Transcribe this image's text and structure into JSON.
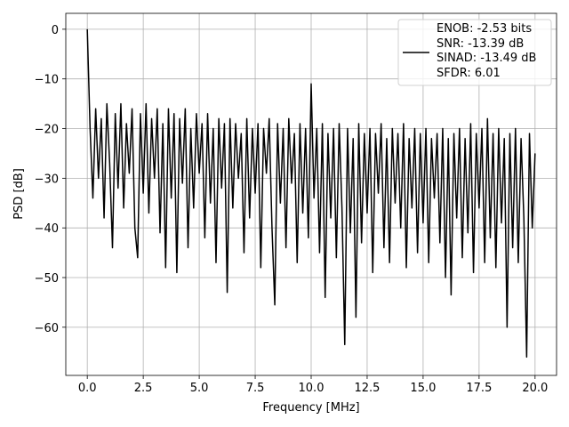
{
  "chart_data": {
    "type": "line",
    "xlabel": "Frequency [MHz]",
    "ylabel": "PSD [dB]",
    "xlim": [
      -0.96,
      20.96
    ],
    "ylim": [
      -69.7,
      3.2
    ],
    "xticks": [
      {
        "value": 0,
        "label": "0.0"
      },
      {
        "value": 2.5,
        "label": "2.5"
      },
      {
        "value": 5,
        "label": "5.0"
      },
      {
        "value": 7.5,
        "label": "7.5"
      },
      {
        "value": 10,
        "label": "10.0"
      },
      {
        "value": 12.5,
        "label": "12.5"
      },
      {
        "value": 15,
        "label": "15.0"
      },
      {
        "value": 17.5,
        "label": "17.5"
      },
      {
        "value": 20,
        "label": "20.0"
      }
    ],
    "yticks": [
      0,
      {
        "value": -10,
        "label": "−10"
      },
      {
        "value": -20,
        "label": "−20"
      },
      {
        "value": -30,
        "label": "−30"
      },
      {
        "value": -40,
        "label": "−40"
      },
      {
        "value": -50,
        "label": "−50"
      },
      {
        "value": -60,
        "label": "−60"
      }
    ],
    "grid": true,
    "legend": "upper right",
    "x": [
      0,
      0.125,
      0.25,
      0.375,
      0.5,
      0.625,
      0.75,
      0.875,
      1,
      1.125,
      1.25,
      1.375,
      1.5,
      1.625,
      1.75,
      1.875,
      2,
      2.125,
      2.25,
      2.375,
      2.5,
      2.625,
      2.75,
      2.875,
      3,
      3.125,
      3.25,
      3.375,
      3.5,
      3.625,
      3.75,
      3.875,
      4,
      4.125,
      4.25,
      4.375,
      4.5,
      4.625,
      4.75,
      4.875,
      5,
      5.125,
      5.25,
      5.375,
      5.5,
      5.625,
      5.75,
      5.875,
      6,
      6.125,
      6.25,
      6.375,
      6.5,
      6.625,
      6.75,
      6.875,
      7,
      7.125,
      7.25,
      7.375,
      7.5,
      7.625,
      7.75,
      7.875,
      8,
      8.125,
      8.25,
      8.375,
      8.5,
      8.625,
      8.75,
      8.875,
      9,
      9.125,
      9.25,
      9.375,
      9.5,
      9.625,
      9.75,
      9.875,
      10,
      10.125,
      10.25,
      10.375,
      10.5,
      10.625,
      10.75,
      10.875,
      11,
      11.125,
      11.25,
      11.375,
      11.5,
      11.625,
      11.75,
      11.875,
      12,
      12.125,
      12.25,
      12.375,
      12.5,
      12.625,
      12.75,
      12.875,
      13,
      13.125,
      13.25,
      13.375,
      13.5,
      13.625,
      13.75,
      13.875,
      14,
      14.125,
      14.25,
      14.375,
      14.5,
      14.625,
      14.75,
      14.875,
      15,
      15.125,
      15.25,
      15.375,
      15.5,
      15.625,
      15.75,
      15.875,
      16,
      16.125,
      16.25,
      16.375,
      16.5,
      16.625,
      16.75,
      16.875,
      17,
      17.125,
      17.25,
      17.375,
      17.5,
      17.625,
      17.75,
      17.875,
      18,
      18.125,
      18.25,
      18.375,
      18.5,
      18.625,
      18.75,
      18.875,
      19,
      19.125,
      19.25,
      19.375,
      19.5,
      19.625,
      19.75,
      19.875,
      20
    ],
    "series": [
      {
        "name": "ENOB: -2.53 bits\nSNR: -13.39 dB\nSINAD: -13.49 dB\nSFDR: 6.01",
        "color": "#000000",
        "values": [
          0,
          -20,
          -34,
          -16,
          -30,
          -18,
          -38,
          -15,
          -27,
          -44,
          -17,
          -32,
          -15,
          -36,
          -19,
          -29,
          -16,
          -40,
          -46,
          -17,
          -33,
          -15,
          -37,
          -18,
          -30,
          -16,
          -41,
          -19,
          -48,
          -16,
          -34,
          -17,
          -49,
          -18,
          -31,
          -16,
          -44,
          -20,
          -36,
          -17,
          -29,
          -19,
          -42,
          -17,
          -35,
          -20,
          -47,
          -18,
          -32,
          -19,
          -53,
          -18,
          -36,
          -19,
          -30,
          -21,
          -45,
          -18,
          -38,
          -20,
          -33,
          -19,
          -48,
          -20,
          -29,
          -18,
          -40,
          -55.5,
          -19,
          -35,
          -20,
          -44,
          -18,
          -31,
          -21,
          -47,
          -19,
          -37,
          -20,
          -42,
          -11,
          -34,
          -20,
          -45,
          -19,
          -54,
          -21,
          -38,
          -20,
          -46,
          -19,
          -36,
          -63.5,
          -20,
          -41,
          -22,
          -58,
          -19,
          -43,
          -21,
          -37,
          -20,
          -49,
          -21,
          -33,
          -19,
          -44,
          -22,
          -47,
          -20,
          -35,
          -21,
          -40,
          -19,
          -48,
          -22,
          -36,
          -20,
          -45,
          -21,
          -39,
          -20,
          -47,
          -22,
          -34,
          -21,
          -43,
          -20,
          -50,
          -22,
          -53.5,
          -21,
          -38,
          -20,
          -46,
          -22,
          -41,
          -19,
          -49,
          -21,
          -36,
          -20,
          -47,
          -18,
          -42,
          -21,
          -48,
          -20,
          -39,
          -22,
          -60,
          -21,
          -44,
          -20,
          -47,
          -22,
          -38,
          -66,
          -21,
          -40,
          -25
        ]
      }
    ]
  }
}
